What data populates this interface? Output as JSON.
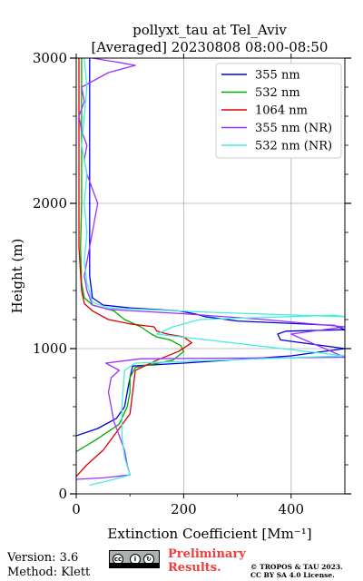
{
  "chart_data": {
    "type": "line",
    "title": "pollyxt_tau at Tel_Aviv",
    "subtitle": "[Averaged] 20230808 08:00-08:50",
    "xlabel": "Extinction Coefficient [Mm⁻¹]",
    "ylabel": "Height (m)",
    "xlim": [
      0,
      500
    ],
    "ylim": [
      0,
      3000
    ],
    "xticks": [
      "0",
      "200",
      "400"
    ],
    "yticks": [
      "0",
      "1000",
      "2000",
      "3000"
    ],
    "xtick_values": [
      0,
      200,
      400
    ],
    "ytick_values": [
      0,
      1000,
      2000,
      3000
    ],
    "grid": true,
    "legend_position": "top-right",
    "series": [
      {
        "name": "355 nm",
        "color": "#0000dd",
        "points": [
          [
            0,
            400
          ],
          [
            40,
            450
          ],
          [
            75,
            520
          ],
          [
            90,
            600
          ],
          [
            95,
            700
          ],
          [
            100,
            800
          ],
          [
            105,
            880
          ],
          [
            200,
            900
          ],
          [
            400,
            950
          ],
          [
            500,
            1000
          ],
          [
            380,
            1060
          ],
          [
            375,
            1100
          ],
          [
            390,
            1120
          ],
          [
            500,
            1130
          ],
          [
            480,
            1160
          ],
          [
            300,
            1190
          ],
          [
            240,
            1220
          ],
          [
            220,
            1240
          ],
          [
            190,
            1260
          ],
          [
            100,
            1280
          ],
          [
            50,
            1300
          ],
          [
            30,
            1350
          ],
          [
            25,
            1500
          ],
          [
            25,
            1800
          ],
          [
            25,
            2200
          ],
          [
            25,
            2600
          ],
          [
            25,
            3000
          ]
        ]
      },
      {
        "name": "532 nm",
        "color": "#00aa00",
        "points": [
          [
            0,
            290
          ],
          [
            40,
            380
          ],
          [
            80,
            480
          ],
          [
            95,
            600
          ],
          [
            100,
            700
          ],
          [
            100,
            800
          ],
          [
            110,
            870
          ],
          [
            180,
            920
          ],
          [
            200,
            980
          ],
          [
            195,
            1020
          ],
          [
            175,
            1060
          ],
          [
            150,
            1080
          ],
          [
            140,
            1100
          ],
          [
            120,
            1150
          ],
          [
            90,
            1200
          ],
          [
            70,
            1260
          ],
          [
            30,
            1300
          ],
          [
            15,
            1350
          ],
          [
            10,
            1450
          ],
          [
            8,
            1700
          ],
          [
            10,
            2000
          ],
          [
            10,
            2500
          ],
          [
            10,
            3000
          ]
        ]
      },
      {
        "name": "1064 nm",
        "color": "#dd0000",
        "points": [
          [
            0,
            120
          ],
          [
            20,
            200
          ],
          [
            50,
            300
          ],
          [
            80,
            450
          ],
          [
            100,
            550
          ],
          [
            105,
            700
          ],
          [
            110,
            850
          ],
          [
            150,
            920
          ],
          [
            190,
            980
          ],
          [
            215,
            1040
          ],
          [
            200,
            1080
          ],
          [
            170,
            1100
          ],
          [
            150,
            1120
          ],
          [
            145,
            1150
          ],
          [
            100,
            1170
          ],
          [
            60,
            1200
          ],
          [
            30,
            1260
          ],
          [
            15,
            1310
          ],
          [
            10,
            1400
          ],
          [
            5,
            1700
          ],
          [
            5,
            2000
          ],
          [
            5,
            2500
          ],
          [
            5,
            3000
          ]
        ]
      },
      {
        "name": "355 nm (NR)",
        "color": "#9933ff",
        "points": [
          [
            0,
            100
          ],
          [
            50,
            110
          ],
          [
            100,
            130
          ],
          [
            95,
            200
          ],
          [
            90,
            300
          ],
          [
            80,
            400
          ],
          [
            70,
            500
          ],
          [
            65,
            600
          ],
          [
            60,
            700
          ],
          [
            65,
            800
          ],
          [
            80,
            850
          ],
          [
            55,
            900
          ],
          [
            120,
            930
          ],
          [
            500,
            940
          ],
          [
            400,
            1100
          ],
          [
            500,
            1150
          ],
          [
            350,
            1200
          ],
          [
            200,
            1240
          ],
          [
            60,
            1270
          ],
          [
            30,
            1300
          ],
          [
            20,
            1400
          ],
          [
            15,
            1500
          ],
          [
            20,
            1600
          ],
          [
            25,
            1700
          ],
          [
            30,
            1800
          ],
          [
            35,
            1900
          ],
          [
            40,
            2000
          ],
          [
            30,
            2100
          ],
          [
            20,
            2200
          ],
          [
            15,
            2300
          ],
          [
            20,
            2400
          ],
          [
            10,
            2500
          ],
          [
            5,
            2600
          ],
          [
            15,
            2700
          ],
          [
            10,
            2800
          ],
          [
            60,
            2900
          ],
          [
            110,
            2950
          ],
          [
            80,
            2970
          ],
          [
            30,
            3000
          ]
        ]
      },
      {
        "name": "532 nm (NR)",
        "color": "#44eedd",
        "points": [
          [
            25,
            60
          ],
          [
            60,
            90
          ],
          [
            100,
            130
          ],
          [
            90,
            250
          ],
          [
            85,
            400
          ],
          [
            85,
            600
          ],
          [
            88,
            750
          ],
          [
            90,
            850
          ],
          [
            110,
            900
          ],
          [
            500,
            950
          ],
          [
            150,
            1100
          ],
          [
            180,
            1150
          ],
          [
            230,
            1200
          ],
          [
            480,
            1230
          ],
          [
            500,
            1220
          ],
          [
            250,
            1250
          ],
          [
            60,
            1280
          ],
          [
            30,
            1320
          ],
          [
            20,
            1450
          ],
          [
            15,
            1600
          ],
          [
            20,
            1800
          ],
          [
            15,
            2000
          ],
          [
            20,
            2200
          ],
          [
            10,
            2400
          ],
          [
            15,
            2600
          ],
          [
            20,
            2800
          ],
          [
            15,
            3000
          ]
        ]
      }
    ]
  },
  "footer": {
    "version": "Version: 3.6",
    "method": "Method: Klett",
    "preliminary_line1": "Preliminary",
    "preliminary_line2": "Results.",
    "copyright_line1": "© TROPOS & TAU 2023.",
    "copyright_line2": "CC BY SA 4.0 License."
  },
  "license_badge": {
    "icons": [
      "cc-icon",
      "by-icon",
      "sa-icon"
    ],
    "color": "#aab2ab"
  }
}
